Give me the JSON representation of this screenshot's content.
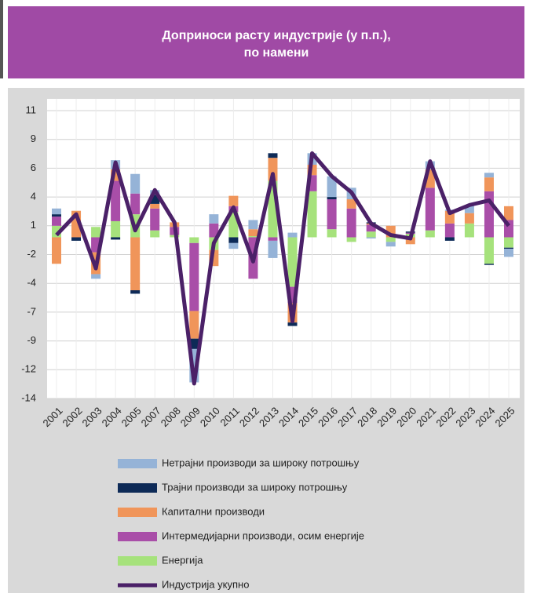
{
  "chart_data": {
    "type": "bar",
    "stacked": true,
    "title": [
      "Доприноси расту индустрије (у п.п.),",
      "по намени"
    ],
    "categories": [
      "2001",
      "2002",
      "2003",
      "2004",
      "2005",
      "2007",
      "2008",
      "2009",
      "2010",
      "2011",
      "2012",
      "2013",
      "2014",
      "2015",
      "2016",
      "2017",
      "2018",
      "2019",
      "2020",
      "2021",
      "2022",
      "2023",
      "2024",
      "2025"
    ],
    "series": [
      {
        "name": "Нетрајни производи за широку потрошњу",
        "color": "#95b3d7",
        "values": [
          0.5,
          0,
          -0.4,
          0.8,
          1.7,
          0.4,
          0,
          -2.9,
          0.8,
          -0.5,
          0.8,
          -1.5,
          0.4,
          1.0,
          1.8,
          1.0,
          -0.1,
          -0.4,
          0,
          0.7,
          0.1,
          0.7,
          0.4,
          -0.7
        ]
      },
      {
        "name": "Трајни производи за широку потрошњу",
        "color": "#0d2a57",
        "values": [
          0.2,
          -0.3,
          0,
          -0.2,
          -0.3,
          0.8,
          0,
          -0.9,
          0,
          -0.5,
          0,
          0.4,
          -0.3,
          0,
          0.2,
          0,
          0.1,
          0,
          0.1,
          0,
          -0.3,
          0,
          -0.1,
          -0.1
        ]
      },
      {
        "name": "Капитални производи",
        "color": "#f0955a",
        "values": [
          -2.3,
          2.3,
          -1.9,
          1.0,
          -4.6,
          0.4,
          0.4,
          -2.4,
          -1.4,
          0.9,
          0.6,
          2.0,
          -1.7,
          0.9,
          0,
          0.8,
          0.1,
          1.0,
          -0.6,
          1.6,
          1.1,
          0.9,
          1.2,
          1.2
        ]
      },
      {
        "name": "Интермедијарни производи, осим енергије",
        "color": "#a94ea8",
        "values": [
          0.8,
          0,
          -1.3,
          3.5,
          1.8,
          1.9,
          0.7,
          -5.9,
          1.2,
          0.5,
          -3.6,
          -0.3,
          -1.4,
          1.4,
          2.6,
          2.5,
          0.6,
          0,
          0.1,
          3.7,
          1.2,
          0,
          4.0,
          1.5
        ]
      },
      {
        "name": "Енергија",
        "color": "#a6e27c",
        "values": [
          1.0,
          0,
          0.9,
          1.4,
          2.0,
          0.6,
          0.2,
          -0.5,
          -1.1,
          2.2,
          0.1,
          4.9,
          -4.3,
          4.0,
          0.7,
          -0.4,
          0.5,
          -0.4,
          0.3,
          0.6,
          0,
          1.2,
          -2.3,
          -0.9
        ]
      },
      {
        "name": "Индустрија укупно",
        "type": "line",
        "color": "#4b2168",
        "values": [
          0.2,
          2.0,
          -2.7,
          6.5,
          0.6,
          4.1,
          1.3,
          -12.7,
          -0.5,
          2.6,
          -2.1,
          5.5,
          -7.3,
          7.3,
          5.3,
          3.9,
          1.2,
          0.2,
          -0.1,
          6.6,
          2.1,
          2.8,
          3.2,
          1.0
        ]
      }
    ],
    "ylim": [
      -14,
      11
    ],
    "yticks": [
      -14,
      {
        "value": -11.5,
        "label": "-12"
      },
      -9,
      {
        "value": -6.5,
        "label": "-7"
      },
      -4,
      {
        "value": -1.5,
        "label": "-2"
      },
      1,
      {
        "value": 3.5,
        "label": "4"
      },
      6,
      {
        "value": 8.5,
        "label": "9"
      },
      11
    ],
    "grid": true
  }
}
